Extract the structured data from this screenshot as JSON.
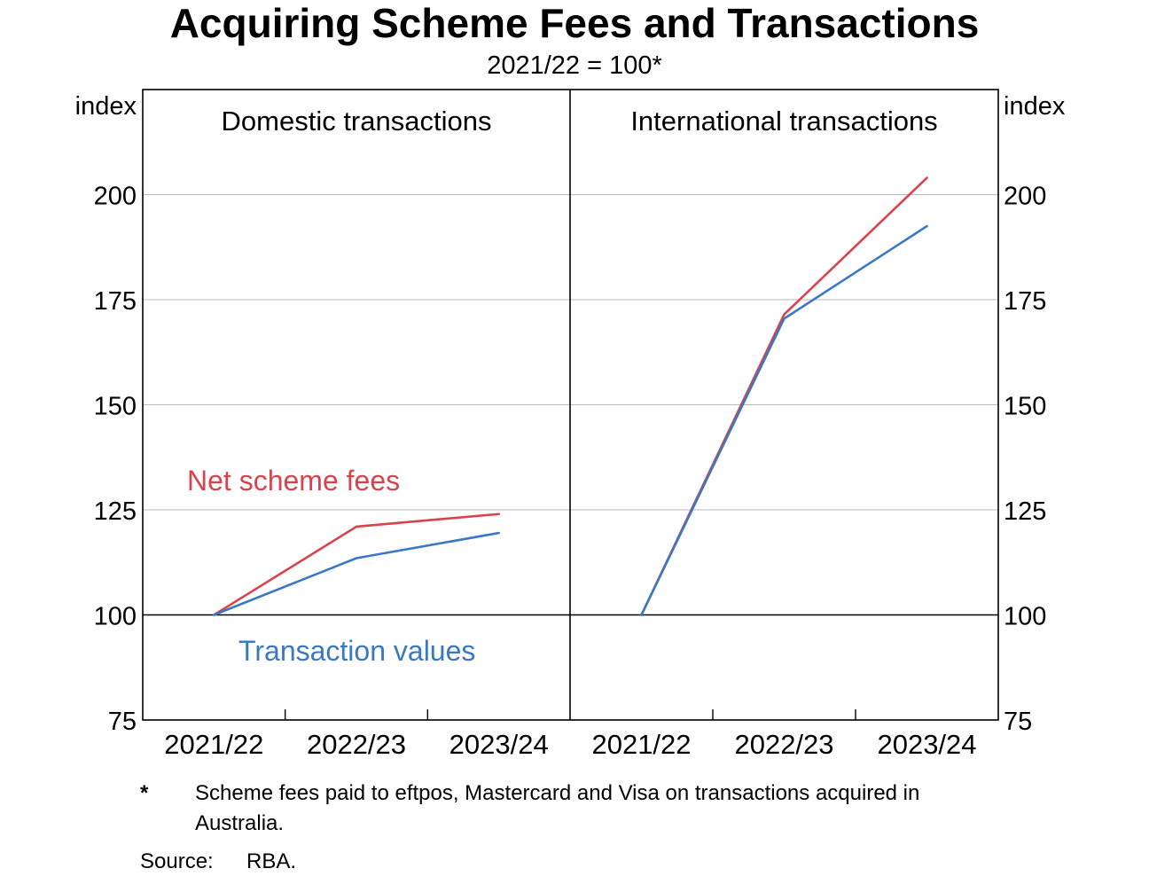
{
  "title": "Acquiring Scheme Fees and Transactions",
  "subtitle": "2021/22 = 100*",
  "footnote": {
    "mark": "*",
    "text": "Scheme fees paid to eftpos, Mastercard and Visa on transactions acquired in Australia."
  },
  "source": {
    "label": "Source:",
    "text": "RBA."
  },
  "colors": {
    "net_scheme_fees": "#d9434b",
    "transaction_values": "#3b78c3"
  },
  "chart_data": [
    {
      "type": "line",
      "title": "Domestic transactions",
      "ylabel": "index",
      "ylim": [
        75,
        225
      ],
      "yticks": [
        75,
        100,
        125,
        150,
        175,
        200
      ],
      "categories": [
        "2021/22",
        "2022/23",
        "2023/24"
      ],
      "series": [
        {
          "name": "Net scheme fees",
          "color": "#d9434b",
          "values": [
            100,
            121,
            124
          ]
        },
        {
          "name": "Transaction values",
          "color": "#3b78c3",
          "values": [
            100,
            113.5,
            119.5
          ]
        }
      ],
      "grid": true
    },
    {
      "type": "line",
      "title": "International transactions",
      "ylabel": "index",
      "ylim": [
        75,
        225
      ],
      "yticks": [
        75,
        100,
        125,
        150,
        175,
        200
      ],
      "categories": [
        "2021/22",
        "2022/23",
        "2023/24"
      ],
      "series": [
        {
          "color": "#d9434b",
          "values": [
            100,
            171.5,
            204
          ]
        },
        {
          "color": "#3b78c3",
          "values": [
            100,
            170.5,
            192.5
          ]
        }
      ],
      "grid": true
    }
  ]
}
